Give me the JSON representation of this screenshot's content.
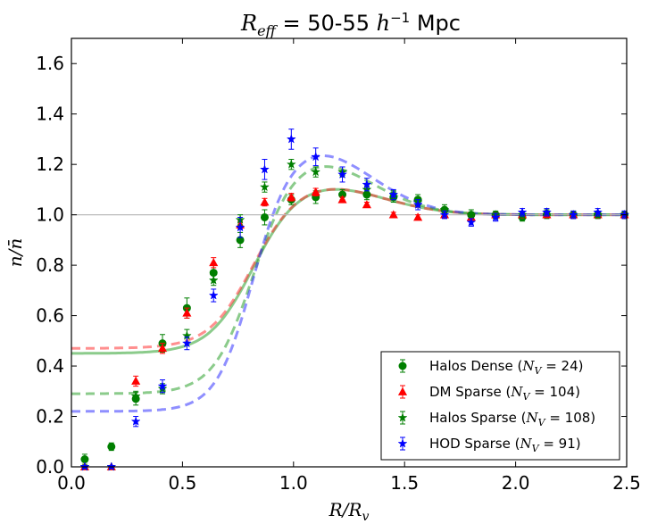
{
  "chart_data": {
    "type": "scatter",
    "title": "R_eff = 50-55 h^-1 Mpc",
    "title_parts": {
      "R": "R",
      "eff": "eff",
      "eq": " = 50-55 ",
      "h": "h",
      "exp": "−1",
      "unit": " Mpc"
    },
    "xlabel": "R/R_v",
    "ylabel": "n/n̄",
    "xlabel_text": "R/R",
    "xlabel_sub": "v",
    "ylabel_text": "n/n̄",
    "xlim": [
      0.0,
      2.5
    ],
    "ylim": [
      0.0,
      1.7
    ],
    "xticks": [
      0.0,
      0.5,
      1.0,
      1.5,
      2.0,
      2.5
    ],
    "yticks": [
      0.0,
      0.2,
      0.4,
      0.6,
      0.8,
      1.0,
      1.2,
      1.4,
      1.6
    ],
    "xtick_labels": [
      "0.0",
      "0.5",
      "1.0",
      "1.5",
      "2.0",
      "2.5"
    ],
    "ytick_labels": [
      "0.0",
      "0.2",
      "0.4",
      "0.6",
      "0.8",
      "1.0",
      "1.2",
      "1.4",
      "1.6"
    ],
    "reference_line": 1.0,
    "legend_position": "lower-right",
    "series": [
      {
        "name": "Halos Dense",
        "label_pre": "Halos Dense (",
        "label_post": " = 24)",
        "marker": "circle",
        "color": "#007f00",
        "x": [
          0.06,
          0.18,
          0.29,
          0.41,
          0.52,
          0.64,
          0.76,
          0.87,
          0.99,
          1.1,
          1.22,
          1.33,
          1.45,
          1.56,
          1.68,
          1.8,
          1.91,
          2.03,
          2.14,
          2.26,
          2.37,
          2.49
        ],
        "y": [
          0.03,
          0.08,
          0.27,
          0.49,
          0.63,
          0.77,
          0.9,
          0.99,
          1.06,
          1.07,
          1.08,
          1.08,
          1.07,
          1.06,
          1.02,
          1.0,
          1.0,
          0.99,
          1.0,
          1.0,
          1.0,
          1.0
        ],
        "err": [
          0.02,
          0.015,
          0.025,
          0.035,
          0.04,
          0.03,
          0.03,
          0.03,
          0.02,
          0.025,
          0.02,
          0.02,
          0.02,
          0.02,
          0.02,
          0.02,
          0.015,
          0.015,
          0.015,
          0.015,
          0.015,
          0.015
        ]
      },
      {
        "name": "DM Sparse",
        "label_pre": "DM Sparse (",
        "label_post": " = 104)",
        "marker": "triangle",
        "color": "#ff0000",
        "x": [
          0.06,
          0.18,
          0.29,
          0.41,
          0.52,
          0.64,
          0.76,
          0.87,
          0.99,
          1.1,
          1.22,
          1.33,
          1.45,
          1.56,
          1.68,
          1.8,
          1.91,
          2.03,
          2.14,
          2.26,
          2.37,
          2.49
        ],
        "y": [
          0.0,
          0.0,
          0.34,
          0.47,
          0.61,
          0.81,
          0.96,
          1.05,
          1.07,
          1.09,
          1.06,
          1.04,
          1.0,
          0.99,
          1.0,
          0.99,
          1.0,
          1.0,
          1.0,
          1.0,
          1.0,
          1.0
        ],
        "err": [
          0.005,
          0.005,
          0.02,
          0.02,
          0.02,
          0.02,
          0.015,
          0.015,
          0.015,
          0.015,
          0.01,
          0.01,
          0.01,
          0.01,
          0.01,
          0.01,
          0.01,
          0.01,
          0.01,
          0.01,
          0.01,
          0.01
        ]
      },
      {
        "name": "Halos Sparse",
        "label_pre": "Halos Sparse (",
        "label_post": " = 108)",
        "marker": "star",
        "color": "#007f00",
        "x": [
          0.06,
          0.18,
          0.29,
          0.41,
          0.52,
          0.64,
          0.76,
          0.87,
          0.99,
          1.1,
          1.22,
          1.33,
          1.45,
          1.56,
          1.68,
          1.8,
          1.91,
          2.03,
          2.14,
          2.26,
          2.37,
          2.49
        ],
        "y": [
          0.0,
          0.0,
          0.28,
          0.31,
          0.52,
          0.74,
          0.98,
          1.11,
          1.2,
          1.17,
          1.17,
          1.1,
          1.08,
          1.05,
          1.02,
          1.0,
          1.0,
          1.0,
          1.01,
          1.0,
          1.0,
          1.0
        ],
        "err": [
          0.005,
          0.005,
          0.02,
          0.02,
          0.025,
          0.02,
          0.02,
          0.02,
          0.02,
          0.02,
          0.02,
          0.015,
          0.015,
          0.015,
          0.01,
          0.01,
          0.01,
          0.01,
          0.01,
          0.01,
          0.01,
          0.01
        ]
      },
      {
        "name": "HOD Sparse",
        "label_pre": "HOD Sparse (",
        "label_post": " = 91)",
        "marker": "star",
        "color": "#0000ff",
        "x": [
          0.06,
          0.18,
          0.29,
          0.41,
          0.52,
          0.64,
          0.76,
          0.87,
          0.99,
          1.1,
          1.22,
          1.33,
          1.45,
          1.56,
          1.68,
          1.8,
          1.91,
          2.03,
          2.14,
          2.26,
          2.37,
          2.49
        ],
        "y": [
          0.0,
          0.0,
          0.18,
          0.32,
          0.49,
          0.68,
          0.95,
          1.18,
          1.3,
          1.23,
          1.16,
          1.12,
          1.08,
          1.04,
          1.0,
          0.97,
          0.99,
          1.01,
          1.01,
          1.0,
          1.01,
          1.0
        ],
        "err": [
          0.005,
          0.005,
          0.02,
          0.025,
          0.025,
          0.025,
          0.04,
          0.04,
          0.04,
          0.035,
          0.03,
          0.025,
          0.02,
          0.02,
          0.015,
          0.015,
          0.015,
          0.015,
          0.015,
          0.015,
          0.015,
          0.015
        ]
      }
    ],
    "fit_curves": [
      {
        "name": "Halos Dense fit",
        "color": "#2ca02c",
        "style": "solid",
        "center": 0.45,
        "peak": 1.12,
        "rpeak": 1.1,
        "steep": 10,
        "tail_width": 0.4
      },
      {
        "name": "DM Sparse fit",
        "color": "#ff3333",
        "style": "dashed",
        "center": 0.47,
        "peak": 1.12,
        "rpeak": 1.1,
        "steep": 10,
        "tail_width": 0.4
      },
      {
        "name": "Halos Sparse fit",
        "color": "#2ca02c",
        "style": "dashed",
        "center": 0.29,
        "peak": 1.22,
        "rpeak": 1.07,
        "steep": 11,
        "tail_width": 0.38
      },
      {
        "name": "HOD Sparse fit",
        "color": "#3333ff",
        "style": "dashed",
        "center": 0.22,
        "peak": 1.26,
        "rpeak": 1.07,
        "steep": 12,
        "tail_width": 0.38
      }
    ],
    "legend_symbol": "N",
    "legend_symbol_sub": "V"
  }
}
